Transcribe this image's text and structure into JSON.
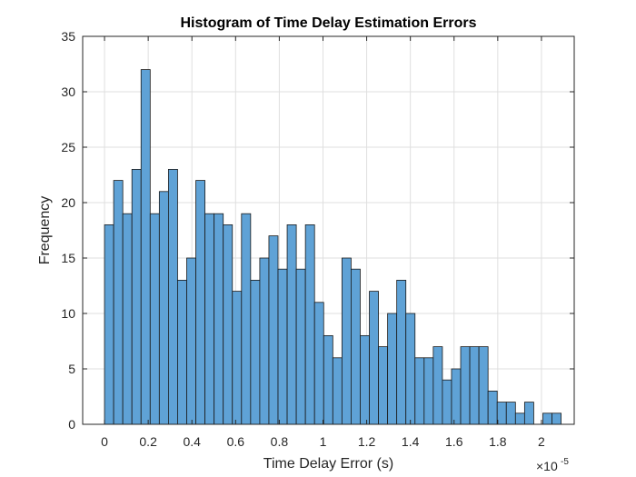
{
  "chart_data": {
    "type": "bar",
    "title": "Histogram of Time Delay Estimation Errors",
    "xlabel": "Time Delay Error (s)",
    "ylabel": "Frequency",
    "x_exponent_label": "×10",
    "x_exponent_power": "-5",
    "xlim": [
      -0.1,
      2.15
    ],
    "ylim": [
      0,
      35
    ],
    "xticks": [
      0,
      0.2,
      0.4,
      0.6,
      0.8,
      1,
      1.2,
      1.4,
      1.6,
      1.8,
      2
    ],
    "xtick_labels": [
      "0",
      "0.2",
      "0.4",
      "0.6",
      "0.8",
      "1",
      "1.2",
      "1.4",
      "1.6",
      "1.8",
      "2"
    ],
    "yticks": [
      0,
      5,
      10,
      15,
      20,
      25,
      30,
      35
    ],
    "ytick_labels": [
      "0",
      "5",
      "10",
      "15",
      "20",
      "25",
      "30",
      "35"
    ],
    "grid": true,
    "bin_start": 0,
    "bin_width": 0.0418,
    "values": [
      18,
      22,
      19,
      23,
      32,
      19,
      21,
      23,
      13,
      15,
      22,
      19,
      19,
      18,
      12,
      19,
      13,
      15,
      17,
      14,
      18,
      14,
      18,
      11,
      8,
      6,
      15,
      14,
      8,
      12,
      7,
      10,
      13,
      10,
      6,
      6,
      7,
      4,
      5,
      7,
      7,
      7,
      3,
      2,
      2,
      1,
      2,
      0,
      1,
      1
    ],
    "bar_color": "#5fa2d6",
    "bar_edge_color": "#1a1a1a"
  }
}
